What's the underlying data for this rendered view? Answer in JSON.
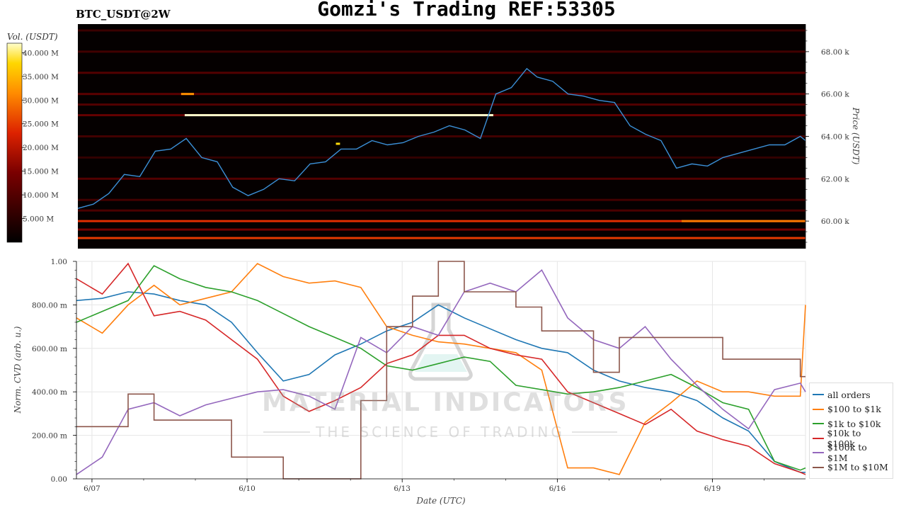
{
  "header": {
    "title": "Gomzi's Trading REF:53305",
    "pair": "BTC_USDT@2W"
  },
  "colorbar": {
    "label": "Vol. (USDT)",
    "ticks": [
      "40.000 M",
      "35.000 M",
      "30.000 M",
      "25.000 M",
      "20.000 M",
      "15.000 M",
      "10.000 M",
      "5.000 M"
    ],
    "tick_values": [
      40,
      35,
      30,
      25,
      20,
      15,
      10,
      5
    ],
    "range": [
      0,
      42
    ]
  },
  "watermark": {
    "line1": "MATERIAL INDICATORS",
    "line2": "THE SCIENCE OF TRADING"
  },
  "chart_data": [
    {
      "type": "heatmap",
      "ylabel": "Price (USDT)",
      "y_ticks": [
        "68.00 k",
        "66.00 k",
        "64.00 k",
        "62.00 k",
        "60.00 k"
      ],
      "y_tick_values": [
        68000,
        66000,
        64000,
        62000,
        60000
      ],
      "ylim": [
        58700,
        69300
      ],
      "xlim": [
        0,
        14.1
      ],
      "price_series": {
        "color": "#3b8fd6",
        "x": [
          0,
          0.3,
          0.6,
          0.9,
          1.2,
          1.5,
          1.8,
          2.1,
          2.4,
          2.7,
          3.0,
          3.3,
          3.6,
          3.9,
          4.2,
          4.5,
          4.8,
          5.1,
          5.4,
          5.7,
          6.0,
          6.3,
          6.6,
          6.9,
          7.2,
          7.5,
          7.8,
          8.1,
          8.4,
          8.7,
          8.9,
          9.2,
          9.5,
          9.8,
          10.1,
          10.4,
          10.7,
          11.0,
          11.3,
          11.6,
          11.9,
          12.2,
          12.5,
          12.8,
          13.1,
          13.4,
          13.7,
          14.0,
          14.1
        ],
        "y": [
          60600,
          60800,
          61300,
          62200,
          62100,
          63300,
          63400,
          63900,
          63000,
          62800,
          61600,
          61200,
          61500,
          62000,
          61900,
          62700,
          62800,
          63400,
          63400,
          63800,
          63600,
          63700,
          64000,
          64200,
          64500,
          64300,
          63900,
          66000,
          66300,
          67200,
          66800,
          66600,
          66000,
          65900,
          65700,
          65600,
          64500,
          64100,
          63800,
          62500,
          62700,
          62600,
          63000,
          63200,
          63400,
          63600,
          63600,
          64000,
          63800
        ]
      },
      "volume_levels": [
        {
          "price": 59200,
          "volume": 25
        },
        {
          "price": 59600,
          "volume": 14
        },
        {
          "price": 60000,
          "volume": 24
        },
        {
          "price": 60500,
          "volume": 9
        },
        {
          "price": 61000,
          "volume": 8
        },
        {
          "price": 62000,
          "volume": 10
        },
        {
          "price": 63000,
          "volume": 6
        },
        {
          "price": 64000,
          "volume": 8
        },
        {
          "price": 65000,
          "volume": 12
        },
        {
          "price": 65500,
          "volume": 10
        },
        {
          "price": 66000,
          "volume": 11
        },
        {
          "price": 67000,
          "volume": 10
        },
        {
          "price": 68000,
          "volume": 8
        },
        {
          "price": 69000,
          "volume": 7
        }
      ],
      "highlight_levels": [
        {
          "x_start": 2.0,
          "x_end": 2.25,
          "price": 66000,
          "volume": 32
        },
        {
          "x_start": 2.07,
          "x_end": 8.05,
          "price": 65000,
          "volume": 42
        },
        {
          "x_start": 5.0,
          "x_end": 5.08,
          "price": 63650,
          "volume": 38
        },
        {
          "x_start": 11.7,
          "x_end": 14.1,
          "price": 60000,
          "volume": 30
        }
      ]
    },
    {
      "type": "line",
      "xlabel": "Date (UTC)",
      "ylabel": "Norm. CVD (arb. u.)",
      "x_ticks": [
        "6/07",
        "6/10",
        "6/13",
        "6/16",
        "6/19"
      ],
      "x_tick_values": [
        0.3,
        3.3,
        6.3,
        9.3,
        12.3
      ],
      "y_ticks": [
        "1.00",
        "800.00 m",
        "600.00 m",
        "400.00 m",
        "200.00 m",
        "0.00"
      ],
      "y_tick_values": [
        1.0,
        0.8,
        0.6,
        0.4,
        0.2,
        0.0
      ],
      "ylim": [
        0,
        1
      ],
      "xlim": [
        0,
        14.1
      ],
      "x": [
        0,
        0.5,
        1.0,
        1.5,
        2.0,
        2.5,
        3.0,
        3.5,
        4.0,
        4.5,
        5.0,
        5.5,
        6.0,
        6.5,
        7.0,
        7.5,
        8.0,
        8.5,
        9.0,
        9.5,
        10.0,
        10.5,
        11.0,
        11.5,
        12.0,
        12.5,
        13.0,
        13.5,
        14.0,
        14.1
      ],
      "series": [
        {
          "name": "all orders",
          "color": "#1f77b4",
          "values": [
            0.82,
            0.83,
            0.86,
            0.85,
            0.82,
            0.8,
            0.72,
            0.58,
            0.45,
            0.48,
            0.57,
            0.62,
            0.68,
            0.72,
            0.8,
            0.74,
            0.69,
            0.64,
            0.6,
            0.58,
            0.5,
            0.45,
            0.42,
            0.4,
            0.36,
            0.28,
            0.22,
            0.08,
            0.03,
            0.03
          ]
        },
        {
          "name": "$100 to $1k",
          "color": "#ff7f0e",
          "values": [
            0.74,
            0.67,
            0.8,
            0.89,
            0.8,
            0.83,
            0.86,
            0.99,
            0.93,
            0.9,
            0.91,
            0.88,
            0.7,
            0.66,
            0.63,
            0.62,
            0.6,
            0.58,
            0.5,
            0.05,
            0.05,
            0.02,
            0.26,
            0.35,
            0.45,
            0.4,
            0.4,
            0.38,
            0.38,
            0.8
          ]
        },
        {
          "name": "$1k to $10k",
          "color": "#2ca02c",
          "values": [
            0.72,
            0.77,
            0.82,
            0.98,
            0.92,
            0.88,
            0.86,
            0.82,
            0.76,
            0.7,
            0.65,
            0.6,
            0.52,
            0.5,
            0.53,
            0.56,
            0.54,
            0.43,
            0.41,
            0.39,
            0.4,
            0.42,
            0.45,
            0.48,
            0.42,
            0.35,
            0.32,
            0.08,
            0.04,
            0.05
          ]
        },
        {
          "name": "$10k to $100k",
          "color": "#d62728",
          "values": [
            0.92,
            0.85,
            0.99,
            0.75,
            0.77,
            0.73,
            0.64,
            0.55,
            0.38,
            0.31,
            0.36,
            0.42,
            0.53,
            0.57,
            0.66,
            0.66,
            0.6,
            0.57,
            0.55,
            0.4,
            0.35,
            0.3,
            0.25,
            0.32,
            0.22,
            0.18,
            0.15,
            0.07,
            0.03,
            0.02
          ]
        },
        {
          "name": "$100k to $1M",
          "color": "#9467bd",
          "values": [
            0.02,
            0.1,
            0.32,
            0.35,
            0.29,
            0.34,
            0.37,
            0.4,
            0.41,
            0.38,
            0.32,
            0.65,
            0.58,
            0.7,
            0.66,
            0.86,
            0.9,
            0.86,
            0.96,
            0.74,
            0.64,
            0.6,
            0.7,
            0.55,
            0.43,
            0.32,
            0.23,
            0.41,
            0.44,
            0.4
          ]
        },
        {
          "name": "$1M to $10M",
          "color": "#8c564b",
          "values": [
            0.24,
            0.24,
            0.39,
            0.27,
            0.27,
            0.27,
            0.1,
            0.1,
            0.0,
            0.0,
            0.0,
            0.36,
            0.7,
            0.84,
            1.0,
            0.86,
            0.86,
            0.79,
            0.68,
            0.68,
            0.49,
            0.65,
            0.65,
            0.65,
            0.65,
            0.55,
            0.55,
            0.55,
            0.47,
            0.47
          ]
        }
      ],
      "legend_position": "right"
    }
  ]
}
